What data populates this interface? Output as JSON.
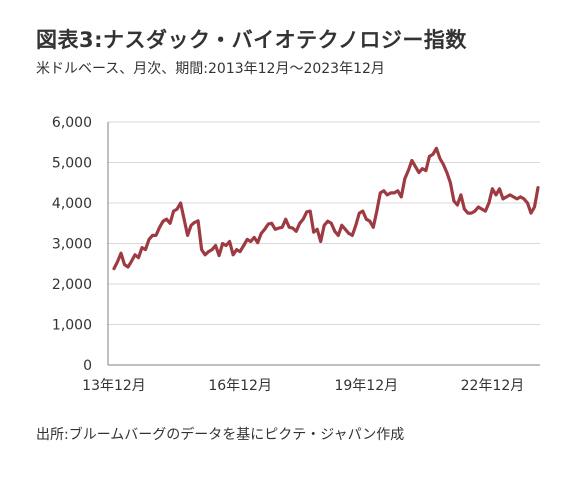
{
  "title": "図表3:ナスダック・バイオテクノロジー指数",
  "subtitle": "米ドルベース、月次、期間:2013年12月～2023年12月",
  "source": "出所:ブルームバーグのデータを基にピクテ・ジャパン作成",
  "colors": {
    "line": "#9e3a42",
    "gridline": "#d9d9d9",
    "axis": "#808080"
  },
  "chart_data": {
    "type": "line",
    "x_ticks": [
      "13年12月",
      "16年12月",
      "19年12月",
      "22年12月"
    ],
    "y_ticks": [
      "0",
      "1,000",
      "2,000",
      "3,000",
      "4,000",
      "5,000",
      "6,000"
    ],
    "ylim": [
      0,
      6000
    ],
    "grid": "horizontal",
    "series": [
      {
        "values": [
          2380,
          2550,
          2760,
          2480,
          2420,
          2560,
          2720,
          2650,
          2900,
          2850,
          3100,
          3200,
          3200,
          3400,
          3550,
          3600,
          3500,
          3800,
          3850,
          4000,
          3600,
          3200,
          3450,
          3520,
          3560,
          2850,
          2720,
          2800,
          2850,
          2950,
          2700,
          3000,
          2950,
          3050,
          2720,
          2850,
          2800,
          2950,
          3100,
          3050,
          3150,
          3020,
          3250,
          3350,
          3480,
          3500,
          3350,
          3380,
          3400,
          3600,
          3400,
          3380,
          3300,
          3500,
          3600,
          3780,
          3800,
          3280,
          3350,
          3050,
          3450,
          3550,
          3500,
          3300,
          3200,
          3450,
          3350,
          3250,
          3200,
          3450,
          3750,
          3800,
          3600,
          3550,
          3400,
          3800,
          4250,
          4300,
          4200,
          4250,
          4250,
          4300,
          4150,
          4600,
          4800,
          5050,
          4900,
          4750,
          4850,
          4800,
          5150,
          5200,
          5350,
          5100,
          4950,
          4750,
          4500,
          4050,
          3950,
          4200,
          3850,
          3750,
          3750,
          3800,
          3900,
          3850,
          3800,
          4000,
          4350,
          4200,
          4350,
          4100,
          4150,
          4200,
          4150,
          4100,
          4150,
          4100,
          4000,
          3750,
          3900,
          4380
        ]
      }
    ]
  }
}
